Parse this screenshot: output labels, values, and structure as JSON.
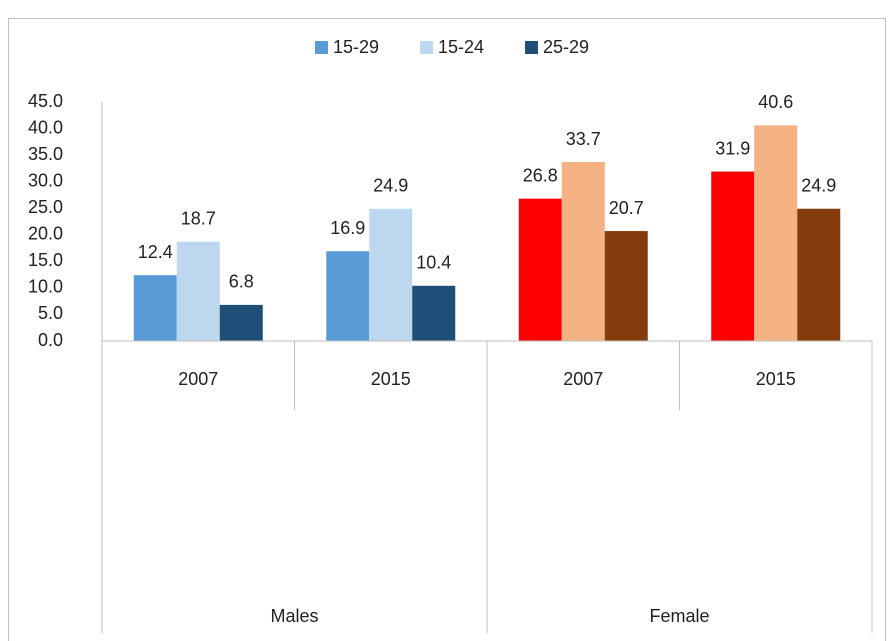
{
  "chart_data": {
    "type": "bar",
    "categories": [
      "2007",
      "2015",
      "2007",
      "2015"
    ],
    "groups": [
      "Males",
      "Female"
    ],
    "series": [
      {
        "name": "15-29",
        "color": "#5b9bd5",
        "colors": [
          "#5b9bd5",
          "#5b9bd5",
          "#ff0000",
          "#ff0000"
        ],
        "values": [
          12.4,
          16.9,
          26.8,
          31.9
        ]
      },
      {
        "name": "15-24",
        "color": "#bdd7ee",
        "colors": [
          "#bdd7ee",
          "#bdd7ee",
          "#f4b183",
          "#f4b183"
        ],
        "values": [
          18.7,
          24.9,
          33.7,
          40.6
        ]
      },
      {
        "name": "25-29",
        "color": "#1f4e79",
        "colors": [
          "#1f4e79",
          "#1f4e79",
          "#843c0c",
          "#843c0c"
        ],
        "values": [
          6.8,
          10.4,
          20.7,
          24.9
        ]
      }
    ],
    "ylim": [
      0,
      45
    ],
    "yticks": [
      {
        "value": 0,
        "label": "0.0"
      },
      {
        "value": 5,
        "label": "5.0"
      },
      {
        "value": 10,
        "label": "10.0"
      },
      {
        "value": 15,
        "label": "15.0"
      },
      {
        "value": 20,
        "label": "20.0"
      },
      {
        "value": 25,
        "label": "25.0"
      },
      {
        "value": 30,
        "label": "30.0"
      },
      {
        "value": 35,
        "label": "35.0"
      },
      {
        "value": 40,
        "label": "40.0"
      },
      {
        "value": 45,
        "label": "45.0"
      }
    ],
    "grid": false,
    "legend": "top"
  }
}
